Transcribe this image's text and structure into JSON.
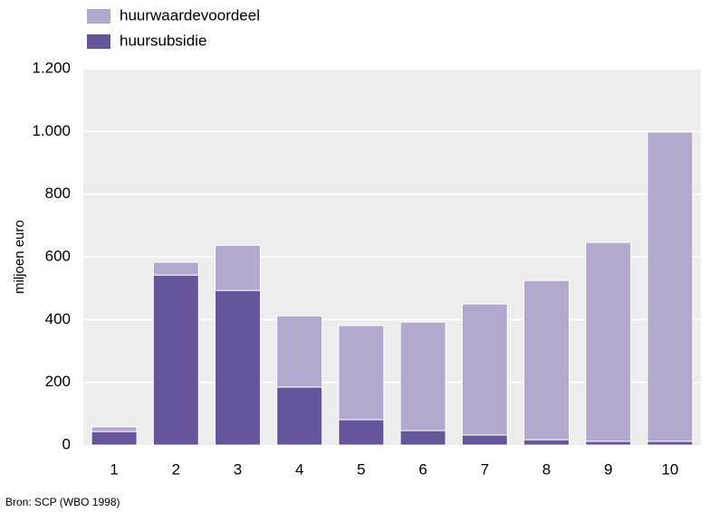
{
  "chart_data": {
    "type": "stacked_bar",
    "y_label": "miljoen euro",
    "source": "Bron: SCP (WBO 1998)",
    "categories": [
      "1",
      "2",
      "3",
      "4",
      "5",
      "6",
      "7",
      "8",
      "9",
      "10"
    ],
    "series": [
      {
        "name": "huurwaardevoordeel",
        "color": "#b3a9cf",
        "values": [
          15,
          41,
          144,
          227,
          300,
          346,
          418,
          508,
          634,
          986
        ]
      },
      {
        "name": "huursubsidie",
        "color": "#66559a",
        "values": [
          43,
          542,
          493,
          185,
          81,
          46,
          32,
          17,
          12,
          12
        ]
      }
    ],
    "ylim": [
      0,
      1200
    ],
    "yticks": [
      0,
      200,
      400,
      600,
      800,
      {
        "value": 1000,
        "label": "1.000"
      },
      {
        "value": 1200,
        "label": "1.200"
      }
    ],
    "grid": true
  }
}
